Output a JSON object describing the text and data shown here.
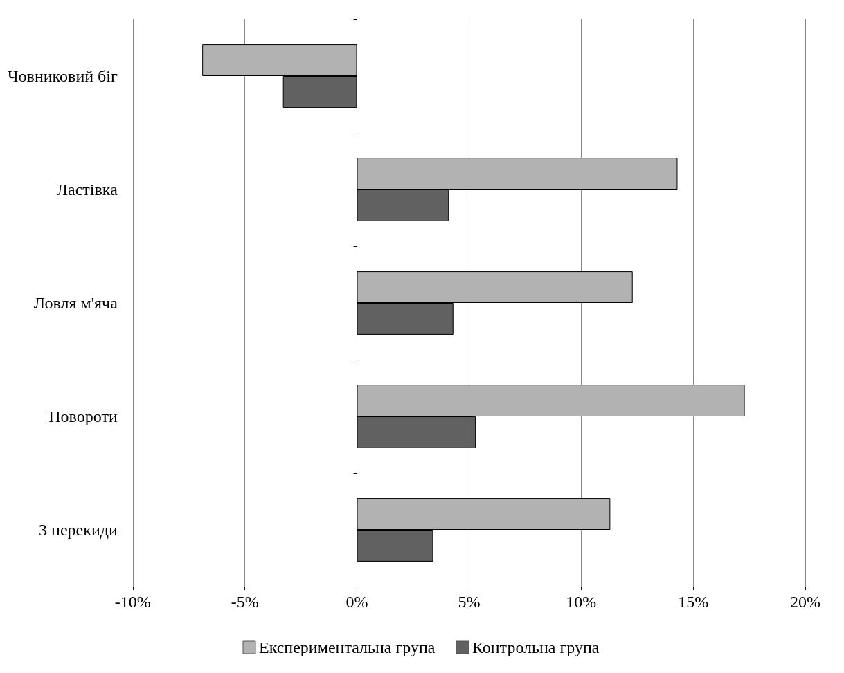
{
  "chart_data": {
    "type": "bar",
    "orientation": "horizontal",
    "categories": [
      "Човниковий біг",
      "Ластівка",
      "Ловля м'яча",
      "Повороти",
      "3 перекиди"
    ],
    "series": [
      {
        "name": "Експериментальна група",
        "color": "#b2b2b2",
        "values": [
          -6.9,
          14.3,
          12.3,
          17.3,
          11.3
        ]
      },
      {
        "name": "Контрольна група",
        "color": "#616161",
        "values": [
          -3.3,
          4.1,
          4.3,
          5.3,
          3.4
        ]
      }
    ],
    "xlim": [
      -10,
      20
    ],
    "xticks": [
      {
        "value": -10,
        "label": "-10%"
      },
      {
        "value": -5,
        "label": "-5%"
      },
      {
        "value": 0,
        "label": "0%"
      },
      {
        "value": 5,
        "label": "5%"
      },
      {
        "value": 10,
        "label": "10%"
      },
      {
        "value": 15,
        "label": "15%"
      },
      {
        "value": 20,
        "label": "20%"
      }
    ],
    "grid": "x",
    "legend": "bottom"
  }
}
